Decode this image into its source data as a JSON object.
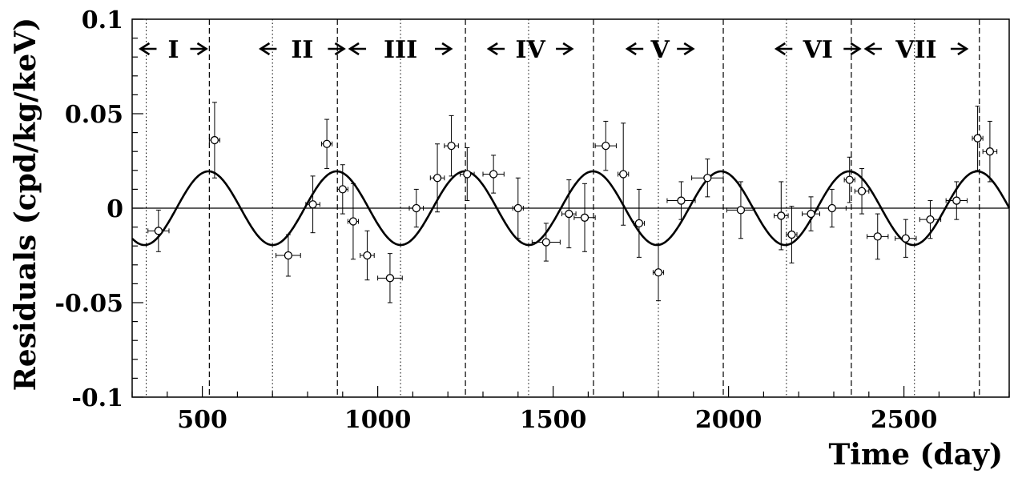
{
  "chart_data": {
    "type": "scatter",
    "xlabel": "Time (day)",
    "ylabel": "Residuals (cpd/kg/keV)",
    "xlim": [
      300,
      2800
    ],
    "ylim": [
      -0.1,
      0.1
    ],
    "xticks": [
      500,
      1000,
      1500,
      2000,
      2500
    ],
    "xtick_labels": [
      "500",
      "1000",
      "1500",
      "2000",
      "2500"
    ],
    "yticks": [
      -0.1,
      -0.05,
      0,
      0.05,
      0.1
    ],
    "ytick_labels": [
      "-0.1",
      "-0.05",
      "0",
      "0.05",
      "0.1"
    ],
    "zero_line": true,
    "grid": false,
    "model": {
      "type": "cosine",
      "amplitude": 0.0195,
      "period_days": 365.25,
      "phase_day": 152.5
    },
    "points": [
      {
        "x": 375,
        "y": -0.012,
        "xerr": 30,
        "yerr": 0.011
      },
      {
        "x": 535,
        "y": 0.036,
        "xerr": 15,
        "yerr": 0.02
      },
      {
        "x": 745,
        "y": -0.025,
        "xerr": 35,
        "yerr": 0.011
      },
      {
        "x": 815,
        "y": 0.002,
        "xerr": 20,
        "yerr": 0.015
      },
      {
        "x": 855,
        "y": 0.034,
        "xerr": 15,
        "yerr": 0.013
      },
      {
        "x": 900,
        "y": 0.01,
        "xerr": 15,
        "yerr": 0.013
      },
      {
        "x": 930,
        "y": -0.007,
        "xerr": 15,
        "yerr": 0.02
      },
      {
        "x": 970,
        "y": -0.025,
        "xerr": 20,
        "yerr": 0.013
      },
      {
        "x": 1035,
        "y": -0.037,
        "xerr": 35,
        "yerr": 0.013
      },
      {
        "x": 1110,
        "y": 0.0,
        "xerr": 20,
        "yerr": 0.01
      },
      {
        "x": 1170,
        "y": 0.016,
        "xerr": 20,
        "yerr": 0.018
      },
      {
        "x": 1210,
        "y": 0.033,
        "xerr": 20,
        "yerr": 0.016
      },
      {
        "x": 1255,
        "y": 0.018,
        "xerr": 20,
        "yerr": 0.014
      },
      {
        "x": 1330,
        "y": 0.018,
        "xerr": 30,
        "yerr": 0.01
      },
      {
        "x": 1400,
        "y": 0.0,
        "xerr": 15,
        "yerr": 0.016
      },
      {
        "x": 1480,
        "y": -0.018,
        "xerr": 40,
        "yerr": 0.01
      },
      {
        "x": 1545,
        "y": -0.003,
        "xerr": 20,
        "yerr": 0.018
      },
      {
        "x": 1590,
        "y": -0.005,
        "xerr": 30,
        "yerr": 0.018
      },
      {
        "x": 1650,
        "y": 0.033,
        "xerr": 30,
        "yerr": 0.013
      },
      {
        "x": 1700,
        "y": 0.018,
        "xerr": 15,
        "yerr": 0.027
      },
      {
        "x": 1745,
        "y": -0.008,
        "xerr": 15,
        "yerr": 0.018
      },
      {
        "x": 1800,
        "y": -0.034,
        "xerr": 15,
        "yerr": 0.015
      },
      {
        "x": 1865,
        "y": 0.004,
        "xerr": 40,
        "yerr": 0.01
      },
      {
        "x": 1940,
        "y": 0.016,
        "xerr": 45,
        "yerr": 0.01
      },
      {
        "x": 2035,
        "y": -0.001,
        "xerr": 40,
        "yerr": 0.015
      },
      {
        "x": 2150,
        "y": -0.004,
        "xerr": 20,
        "yerr": 0.018
      },
      {
        "x": 2180,
        "y": -0.014,
        "xerr": 15,
        "yerr": 0.015
      },
      {
        "x": 2235,
        "y": -0.003,
        "xerr": 25,
        "yerr": 0.009
      },
      {
        "x": 2295,
        "y": 0.0,
        "xerr": 40,
        "yerr": 0.01
      },
      {
        "x": 2345,
        "y": 0.015,
        "xerr": 15,
        "yerr": 0.012
      },
      {
        "x": 2380,
        "y": 0.009,
        "xerr": 20,
        "yerr": 0.012
      },
      {
        "x": 2425,
        "y": -0.015,
        "xerr": 30,
        "yerr": 0.012
      },
      {
        "x": 2505,
        "y": -0.016,
        "xerr": 30,
        "yerr": 0.01
      },
      {
        "x": 2575,
        "y": -0.006,
        "xerr": 30,
        "yerr": 0.01
      },
      {
        "x": 2650,
        "y": 0.004,
        "xerr": 30,
        "yerr": 0.01
      },
      {
        "x": 2710,
        "y": 0.037,
        "xerr": 15,
        "yerr": 0.017
      },
      {
        "x": 2745,
        "y": 0.03,
        "xerr": 20,
        "yerr": 0.016
      }
    ],
    "period_boundaries": [
      {
        "start": 320,
        "end": 515,
        "label": "I"
      },
      {
        "start": 690,
        "end": 880,
        "label": "II"
      },
      {
        "start": 880,
        "end": 1250,
        "label": "III"
      },
      {
        "start": 1250,
        "end": 1620,
        "label": "IV"
      },
      {
        "start": 1620,
        "end": 1990,
        "label": "V"
      },
      {
        "start": 2160,
        "end": 2350,
        "label": "VI"
      },
      {
        "start": 2350,
        "end": 2720,
        "label": "VII"
      }
    ],
    "dotted_lines": [
      340,
      700,
      1065,
      1430,
      1800,
      2165,
      2530
    ],
    "dashed_lines": [
      520,
      885,
      1250,
      1615,
      1985,
      2350,
      2715
    ]
  }
}
